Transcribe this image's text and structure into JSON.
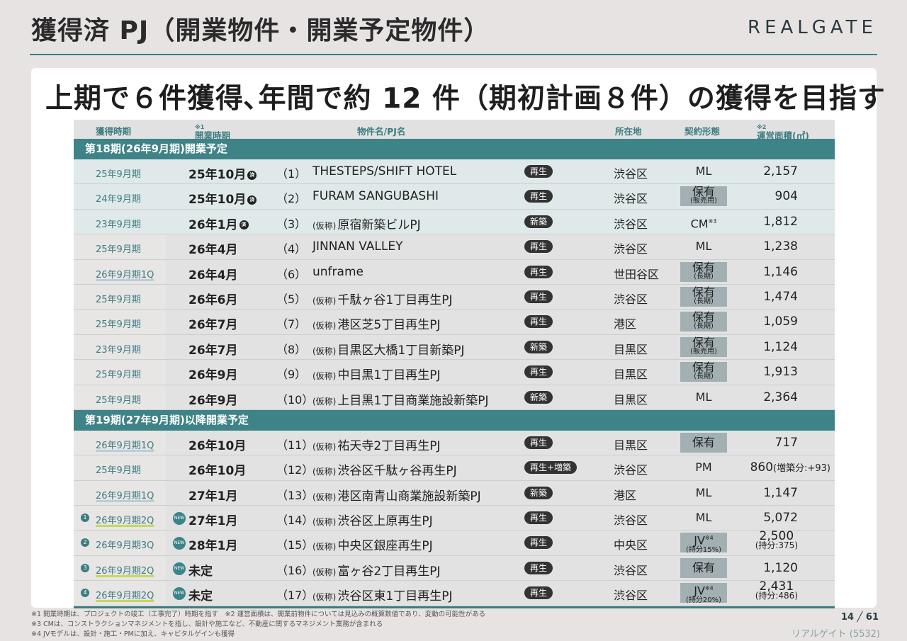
{
  "page_title": "獲得済 PJ（開業物件・開業予定物件）",
  "logo": "REALGATE",
  "headline": "上期で６件獲得､年間で約 12 件（期初計画８件）の獲得を目指す",
  "table_header": {
    "acquired": "獲得時期",
    "opening": "開業時期",
    "opening_note": "※1",
    "property": "物件名/PJ名",
    "location": "所在地",
    "contract": "契約形態",
    "area": "運営面積(㎡)",
    "area_note": "※2"
  },
  "done_glyph": "済",
  "new_glyph": "NEW",
  "tentative": "(仮称)",
  "sections": [
    {
      "title": "第18期(26年9月期)開業予定",
      "rows": [
        {
          "style": "A",
          "acq": "25年9月期",
          "open": "25年10月",
          "done": true,
          "num": "（1）",
          "name": "THESTEPS/SHIFT HOTEL",
          "tentative": false,
          "tag": "再生",
          "loc": "渋谷区",
          "contract": "ML",
          "area": "2,157"
        },
        {
          "style": "A",
          "acq": "24年9月期",
          "open": "25年10月",
          "done": true,
          "num": "（2）",
          "name": "FURAM SANGUBASHI",
          "tentative": false,
          "tag": "再生",
          "loc": "渋谷区",
          "contract": "保有",
          "contract_sub": "(販売用)",
          "box": true,
          "area": "904"
        },
        {
          "style": "A",
          "acq": "23年9月期",
          "open": "26年1月",
          "done": true,
          "num": "（3）",
          "name": "原宿新築ビルPJ",
          "tentative": true,
          "tag": "新築",
          "loc": "渋谷区",
          "contract": "CM",
          "contract_note": "※3",
          "area": "1,812"
        },
        {
          "style": "B",
          "acq": "25年9月期",
          "open": "26年4月",
          "num": "（4）",
          "name": "JINNAN VALLEY",
          "tentative": false,
          "tag": "再生",
          "loc": "渋谷区",
          "contract": "ML",
          "area": "1,238"
        },
        {
          "style": "B",
          "acq": "26年9月期1Q",
          "acq_ul": "blue",
          "open": "26年4月",
          "num": "（6）",
          "name": "unframe",
          "tentative": false,
          "tag": "再生",
          "loc": "世田谷区",
          "contract": "保有",
          "contract_sub": "(長期)",
          "box": true,
          "area": "1,146"
        },
        {
          "style": "B",
          "acq": "25年9月期",
          "open": "26年6月",
          "num": "（5）",
          "name": "千駄ヶ谷1丁目再生PJ",
          "tentative": true,
          "tag": "再生",
          "loc": "渋谷区",
          "contract": "保有",
          "contract_sub": "(長期)",
          "box": true,
          "area": "1,474"
        },
        {
          "style": "B",
          "acq": "25年9月期",
          "open": "26年7月",
          "num": "（7）",
          "name": "港区芝5丁目再生PJ",
          "tentative": true,
          "tag": "再生",
          "loc": "港区",
          "contract": "保有",
          "contract_sub": "(長期)",
          "box": true,
          "area": "1,059"
        },
        {
          "style": "B",
          "acq": "23年9月期",
          "open": "26年7月",
          "num": "（8）",
          "name": "目黒区大橋1丁目新築PJ",
          "tentative": true,
          "tag": "新築",
          "loc": "目黒区",
          "contract": "保有",
          "contract_sub": "(販売用)",
          "box": true,
          "area": "1,124"
        },
        {
          "style": "B",
          "acq": "25年9月期",
          "open": "26年9月",
          "num": "（9）",
          "name": "中目黒1丁目再生PJ",
          "tentative": true,
          "tag": "再生",
          "loc": "目黒区",
          "contract": "保有",
          "contract_sub": "(長期)",
          "box": true,
          "area": "1,913"
        },
        {
          "style": "B",
          "acq": "25年9月期",
          "open": "26年9月",
          "num": "（10）",
          "name": "上目黒1丁目商業施設新築PJ",
          "tentative": true,
          "tag": "新築",
          "loc": "目黒区",
          "contract": "ML",
          "area": "2,364"
        }
      ]
    },
    {
      "title": "第19期(27年9月期)以降開業予定",
      "rows": [
        {
          "style": "B",
          "acq": "26年9月期1Q",
          "acq_ul": "blue",
          "open": "26年10月",
          "num": "（11）",
          "name": "祐天寺2丁目再生PJ",
          "tentative": true,
          "tag": "再生",
          "loc": "目黒区",
          "contract": "保有",
          "box": true,
          "area": "717"
        },
        {
          "style": "B",
          "acq": "25年9月期",
          "open": "26年10月",
          "num": "（12）",
          "name": "渋谷区千駄ヶ谷再生PJ",
          "tentative": true,
          "tag": "再生+増築",
          "loc": "渋谷区",
          "contract": "PM",
          "area": "860",
          "area_extra": "(増築分:+93)"
        },
        {
          "style": "B",
          "acq": "26年9月期1Q",
          "acq_ul": "blue",
          "open": "27年1月",
          "num": "（13）",
          "name": "港区南青山商業施設新築PJ",
          "tentative": true,
          "tag": "新築",
          "loc": "港区",
          "contract": "ML",
          "area": "1,147"
        },
        {
          "style": "B",
          "mark": "1",
          "acq": "26年9月期2Q",
          "acq_ul": "green",
          "is_new": true,
          "open": "27年1月",
          "num": "（14）",
          "name": "渋谷区上原再生PJ",
          "tentative": true,
          "tag": "再生",
          "loc": "渋谷区",
          "contract": "ML",
          "area": "5,072"
        },
        {
          "style": "B",
          "mark": "2",
          "acq": "26年9月期3Q",
          "is_new": true,
          "open": "28年1月",
          "num": "（15）",
          "name": "中央区銀座再生PJ",
          "tentative": true,
          "tag": "再生",
          "loc": "中央区",
          "contract": "JV",
          "contract_note": "※4",
          "contract_sub": "(持分15%)",
          "box": true,
          "area": "2,500",
          "area_sub": "(持分:375)"
        },
        {
          "style": "B",
          "mark": "3",
          "acq": "26年9月期2Q",
          "acq_ul": "green",
          "is_new": true,
          "open": "未定",
          "num": "（16）",
          "name": "富ヶ谷2丁目再生PJ",
          "tentative": true,
          "tag": "再生",
          "loc": "渋谷区",
          "contract": "保有",
          "box": true,
          "area": "1,120"
        },
        {
          "style": "B",
          "mark": "4",
          "acq": "26年9月期2Q",
          "acq_ul": "green",
          "is_new": true,
          "open": "未定",
          "num": "（17）",
          "name": "渋谷区東1丁目再生PJ",
          "tentative": true,
          "tag": "再生",
          "loc": "渋谷区",
          "contract": "JV",
          "contract_note": "※4",
          "contract_sub": "(持分20%)",
          "box": true,
          "area": "2,431",
          "area_sub": "(持分:486)"
        }
      ]
    }
  ],
  "notes": [
    "※1 開業時期は、プロジェクトの竣工（工事完了）時期を指す　※2 運営面積は、開業前物件については見込みの概算数値であり、変動の可能性がある",
    "※3 CMは、コンストラクションマネジメントを指し、設計や施工など、不動産に関するマネジメント業務が含まれる",
    "※4 JVモデルは、設計・施工・PMに加え、キャピタルゲインも獲得"
  ],
  "page_number": "14 ╱  61",
  "company": "リアルゲイト (5532)"
}
